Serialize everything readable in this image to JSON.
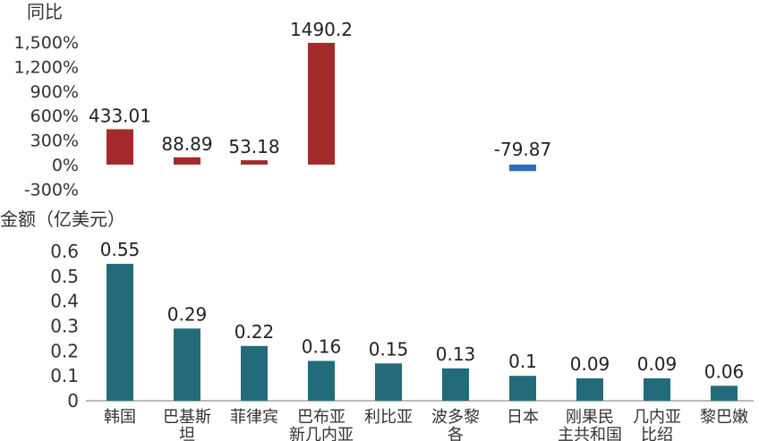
{
  "chart_data": [
    {
      "type": "bar",
      "ylabel": "同比",
      "categories": [
        "韩国",
        "巴基斯坦",
        "菲律宾",
        "巴布亚新几内亚",
        "利比亚",
        "波多黎各",
        "日本",
        "刚果民主共和国",
        "几内亚比绍",
        "黎巴嫩"
      ],
      "values": [
        433.01,
        88.89,
        53.18,
        1490.2,
        null,
        null,
        -79.87,
        null,
        null,
        null
      ],
      "value_labels": [
        "433.01",
        "88.89",
        "53.18",
        "1490.2",
        "",
        "",
        "-79.87",
        "",
        "",
        ""
      ],
      "ylim": [
        -300,
        1500
      ],
      "yticks": [
        "1,500%",
        "1,200%",
        "900%",
        "600%",
        "300%",
        "0%",
        "-300%"
      ],
      "ytick_values": [
        1500,
        1200,
        900,
        600,
        300,
        0,
        -300
      ],
      "colors": {
        "positive": "#a52a2a",
        "negative": "#2e6fb8"
      }
    },
    {
      "type": "bar",
      "ylabel": "金额（亿美元）",
      "categories": [
        "韩国",
        "巴基斯坦",
        "菲律宾",
        "巴布亚新几内亚",
        "利比亚",
        "波多黎各",
        "日本",
        "刚果民主共和国",
        "几内亚比绍",
        "黎巴嫩"
      ],
      "category_lines": [
        [
          "韩国"
        ],
        [
          "巴基斯",
          "坦"
        ],
        [
          "菲律宾"
        ],
        [
          "巴布亚",
          "新几内亚"
        ],
        [
          "利比亚"
        ],
        [
          "波多黎",
          "各"
        ],
        [
          "日本"
        ],
        [
          "刚果民",
          "主共和国"
        ],
        [
          "几内亚",
          "比绍"
        ],
        [
          "黎巴嫩"
        ]
      ],
      "values": [
        0.55,
        0.29,
        0.22,
        0.16,
        0.15,
        0.13,
        0.1,
        0.09,
        0.09,
        0.06
      ],
      "value_labels": [
        "0.55",
        "0.29",
        "0.22",
        "0.16",
        "0.15",
        "0.13",
        "0.1",
        "0.09",
        "0.09",
        "0.06"
      ],
      "ylim": [
        0,
        0.6
      ],
      "yticks": [
        "0.6",
        "0.5",
        "0.4",
        "0.3",
        "0.2",
        "0.1",
        "0"
      ],
      "ytick_values": [
        0.6,
        0.5,
        0.4,
        0.3,
        0.2,
        0.1,
        0
      ],
      "colors": {
        "bar": "#236b7a"
      }
    }
  ]
}
